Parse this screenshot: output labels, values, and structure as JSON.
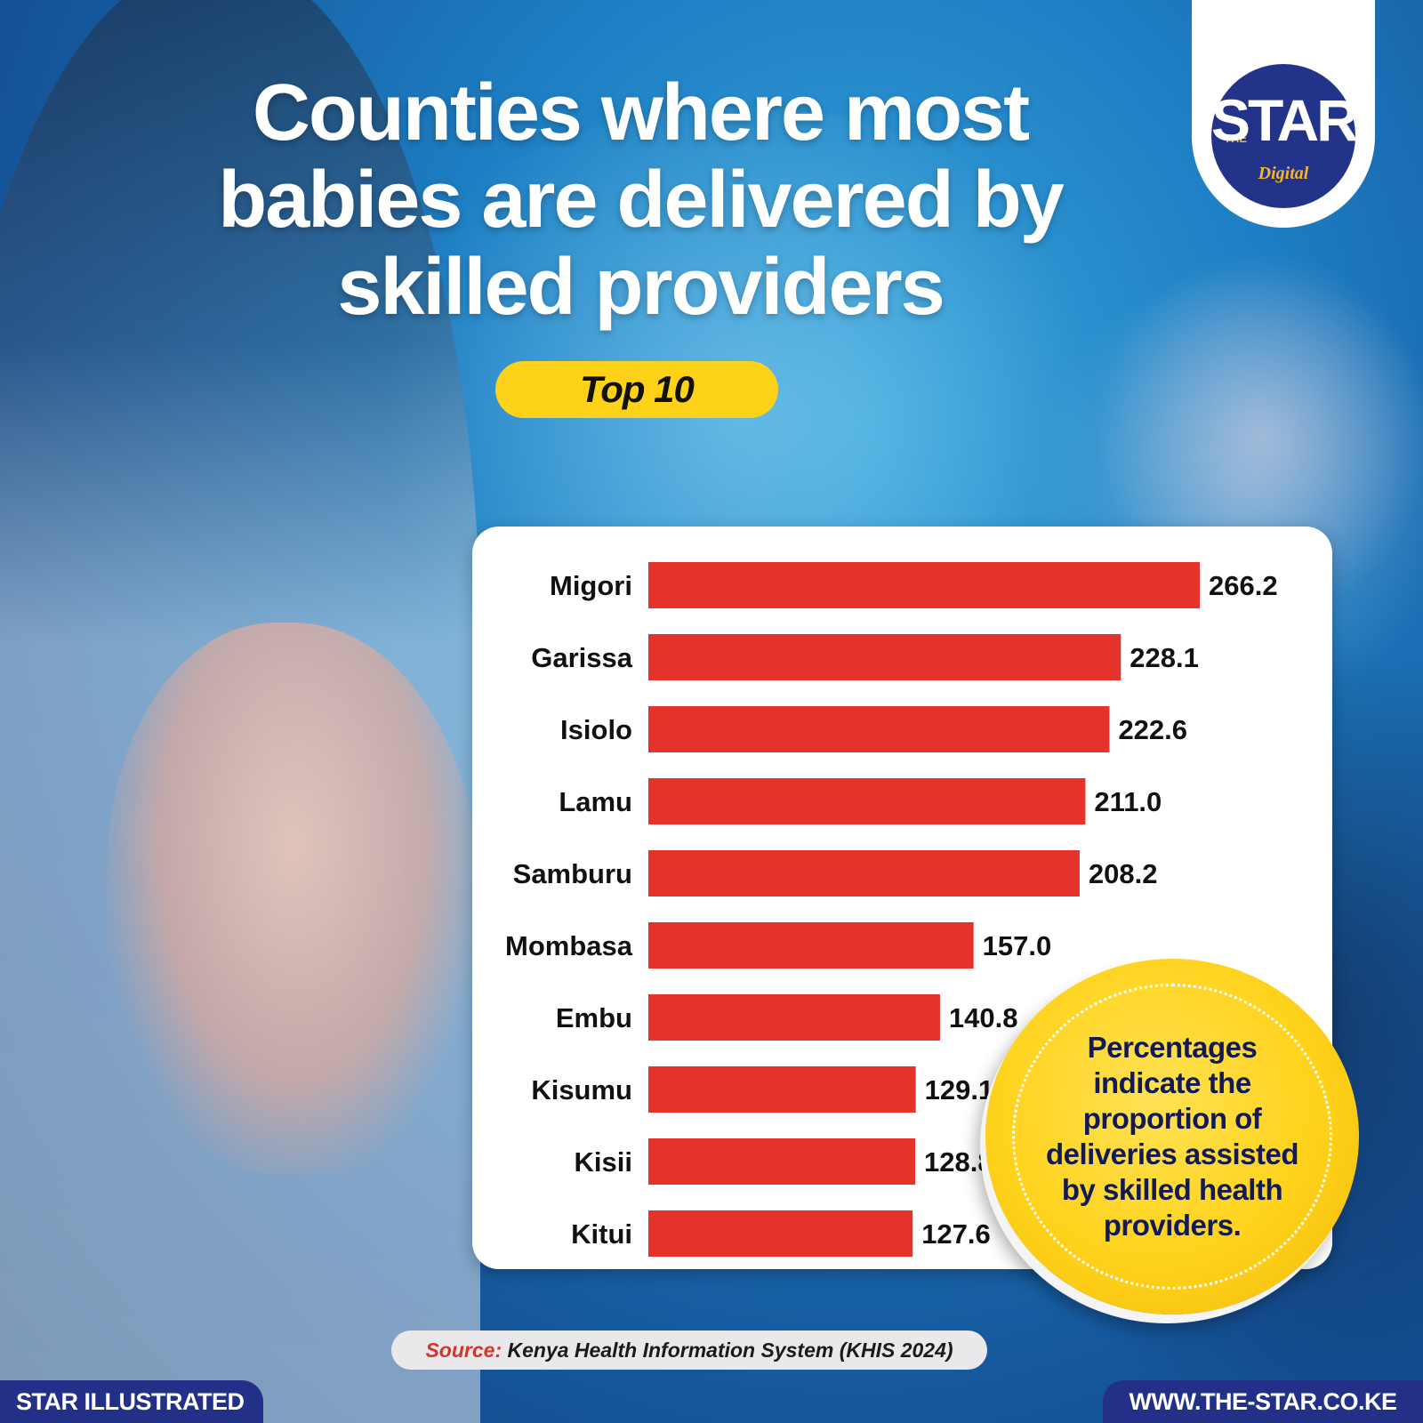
{
  "header": {
    "title_lines": [
      "Counties where most",
      "babies are delivered by",
      "skilled providers"
    ],
    "badge": "Top 10"
  },
  "logo": {
    "prefix": "THE",
    "name": "STAR",
    "tagline": "Digital"
  },
  "chart_data": {
    "type": "bar",
    "orientation": "horizontal",
    "categories": [
      "Migori",
      "Garissa",
      "Isiolo",
      "Lamu",
      "Samburu",
      "Mombasa",
      "Embu",
      "Kisumu",
      "Kisii",
      "Kitui"
    ],
    "values": [
      266.2,
      228.1,
      222.6,
      211.0,
      208.2,
      157.0,
      140.8,
      129.1,
      128.8,
      127.6
    ],
    "value_labels": [
      "266.2",
      "228.1",
      "222.6",
      "211.0",
      "208.2",
      "157.0",
      "140.8",
      "129.1",
      "128.8",
      "127.6"
    ],
    "title": "",
    "xlabel": "",
    "ylabel": "",
    "xlim": [
      0,
      266.2
    ],
    "grid": false,
    "bar_color": "#e5322b"
  },
  "note": {
    "text_lines": [
      "Percentages",
      "indicate the",
      "proportion of",
      "deliveries assisted",
      "by skilled health",
      "providers."
    ]
  },
  "source": {
    "label": "Source:",
    "text": "Kenya Health Information System (KHIS 2024)"
  },
  "footer": {
    "left": "STAR ILLUSTRATED",
    "right": "WWW.THE-STAR.CO.KE"
  }
}
